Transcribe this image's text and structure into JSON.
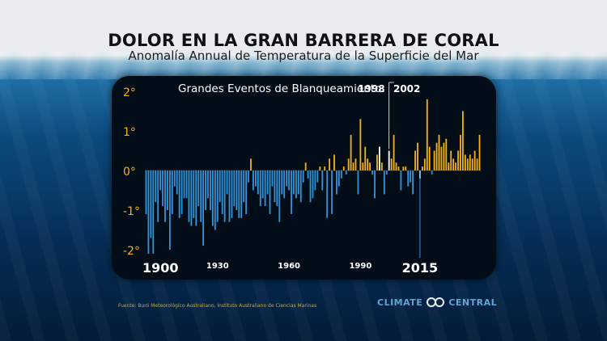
{
  "title": "DOLOR EN LA GRAN BARRERA DE CORAL",
  "subtitle": "Anomalía Annual de Temperatura de la Superficie del Mar",
  "source": "Fuente: Buró Meteorológico Australiano, Instituto Australiano de Ciencias Marinas",
  "logo": {
    "left": "CLIMATE",
    "right": "CENTRAL"
  },
  "colors": {
    "negative": "#2f95db",
    "positive": "#f5b212",
    "bleaching": "#ffffff",
    "panel": "#030d18"
  },
  "chart_data": {
    "type": "bar",
    "title": "",
    "annotation": "Grandes Eventos de Blanqueamiento:",
    "bleaching_labels": [
      "1998",
      "2002"
    ],
    "bleaching_years": [
      1998,
      2002,
      2015
    ],
    "xlabel": "",
    "ylabel": "",
    "ylim": [
      -2.2,
      2.2
    ],
    "yticks": [
      "2°",
      "1°",
      "0°",
      "-1°",
      "-2°"
    ],
    "ytick_values": [
      2,
      1,
      0,
      -1,
      -2
    ],
    "xticks": [
      "1900",
      "1930",
      "1960",
      "1990",
      "2015"
    ],
    "xtick_values": [
      1900,
      1930,
      1960,
      1990,
      2015
    ],
    "x_start": 1900,
    "values": [
      -1.1,
      -2.1,
      -1.7,
      -2.1,
      -0.8,
      -1.3,
      -0.5,
      -0.9,
      -1.3,
      -1.0,
      -2.0,
      -1.1,
      -0.4,
      -0.6,
      -1.2,
      -1.1,
      -0.7,
      -0.7,
      -1.3,
      -1.4,
      -1.2,
      -1.4,
      -0.9,
      -1.3,
      -1.9,
      -1.0,
      -0.7,
      -1.0,
      -1.4,
      -1.5,
      -1.3,
      -0.8,
      -1.1,
      -1.3,
      -0.6,
      -1.3,
      -1.2,
      -0.9,
      -1.0,
      -1.2,
      -1.2,
      -0.8,
      -1.1,
      -0.3,
      0.3,
      -0.5,
      -0.4,
      -0.6,
      -0.9,
      -0.7,
      -0.9,
      -0.6,
      -1.1,
      -0.4,
      -0.8,
      -0.9,
      -1.3,
      -0.6,
      -0.7,
      -0.4,
      -0.5,
      -1.1,
      -0.6,
      -0.7,
      -0.6,
      -0.8,
      -0.3,
      0.2,
      -0.2,
      -0.8,
      -0.7,
      -0.5,
      -0.3,
      0.1,
      -0.5,
      0.1,
      -1.2,
      0.3,
      -1.1,
      0.4,
      -0.6,
      -0.4,
      -0.2,
      0.1,
      -0.1,
      0.3,
      0.9,
      0.2,
      0.3,
      -0.6,
      1.3,
      0.2,
      0.6,
      0.3,
      0.2,
      -0.1,
      -0.7,
      0.4,
      0.6,
      0.2,
      -0.6,
      -0.1,
      0.5,
      0.3,
      0.9,
      0.2,
      0.1,
      -0.5,
      0.1,
      0.1,
      -0.4,
      -0.3,
      -0.6,
      0.5,
      0.7,
      -0.2,
      0.1,
      0.3,
      1.8,
      0.6,
      -0.1,
      0.5,
      0.7,
      0.9,
      0.6,
      0.7,
      0.8,
      0.2,
      0.5,
      0.3,
      0.2,
      0.5,
      0.9,
      1.5,
      0.4,
      0.3,
      0.4,
      0.3,
      0.5,
      0.3,
      0.9
    ]
  }
}
